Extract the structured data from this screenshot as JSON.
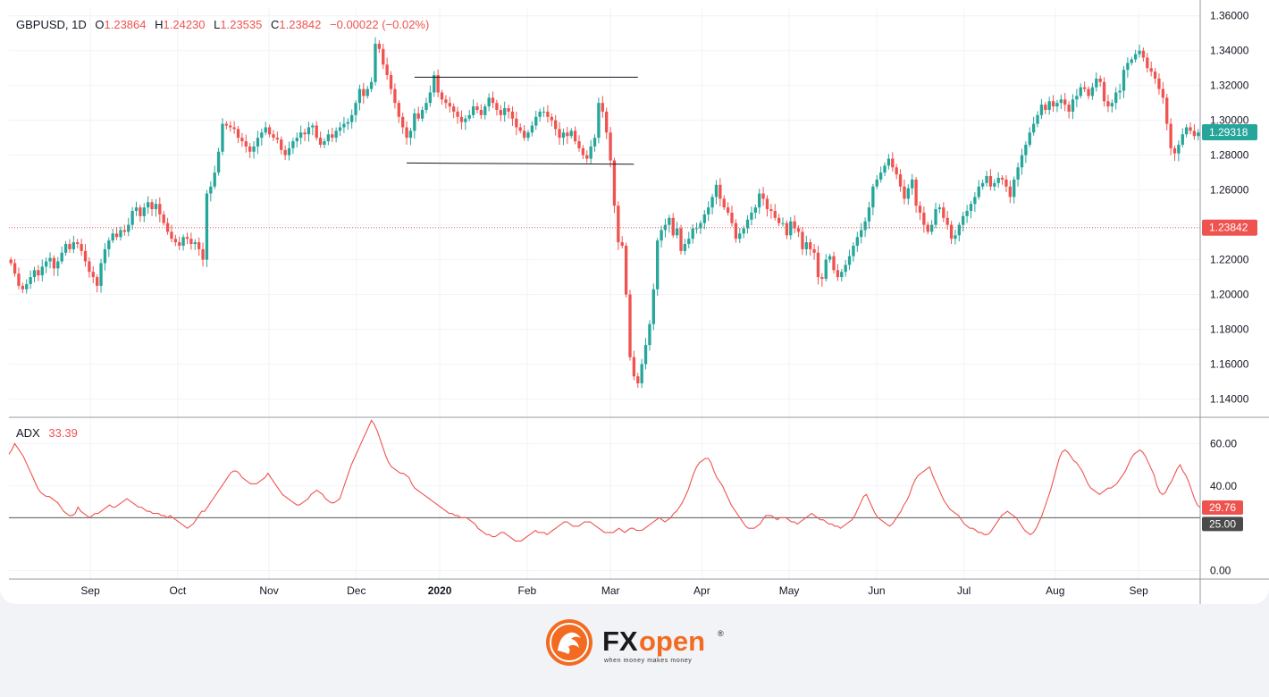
{
  "header": {
    "symbol": "GBPUSD, 1D",
    "open_label": "O",
    "open": "1.23864",
    "high_label": "H",
    "high": "1.24230",
    "low_label": "L",
    "low": "1.23535",
    "close_label": "C",
    "close": "1.23842",
    "change": "−0.00022 (−0.02%)"
  },
  "adx_header": {
    "label": "ADX",
    "value": "33.39"
  },
  "colors": {
    "up": "#26a69a",
    "down": "#ef5350",
    "adx_line": "#ef5350",
    "grid": "#f0f3fa",
    "axis": "#131722",
    "text": "#131722",
    "last_price_tag": "#26a69a",
    "close_tag": "#ef5350",
    "level_tag": "#4a4a4a"
  },
  "price_tags": {
    "current": "1.29318",
    "close": "1.23842"
  },
  "adx_tags": {
    "adx": "29.76",
    "level": "25.00"
  },
  "chart_data": [
    {
      "type": "candlestick",
      "title": "GBPUSD, 1D",
      "ylim": [
        1.13,
        1.365
      ],
      "y_ticks": [
        "1.36000",
        "1.34000",
        "1.32000",
        "1.30000",
        "1.28000",
        "1.26000",
        "1.24000",
        "1.22000",
        "1.20000",
        "1.18000",
        "1.16000",
        "1.14000"
      ],
      "x_ticks": [
        "Sep",
        "Oct",
        "Nov",
        "Dec",
        "2020",
        "Feb",
        "Mar",
        "Apr",
        "May",
        "Jun",
        "Jul",
        "Aug",
        "Sep"
      ],
      "x_tick_positions": [
        20,
        42,
        65,
        87,
        108,
        130,
        151,
        174,
        196,
        218,
        240,
        263,
        284
      ],
      "series": [
        {
          "name": "GBPUSD",
          "close": [
            1.218,
            1.212,
            1.205,
            1.203,
            1.206,
            1.21,
            1.214,
            1.211,
            1.216,
            1.219,
            1.221,
            1.215,
            1.219,
            1.224,
            1.229,
            1.226,
            1.23,
            1.229,
            1.225,
            1.219,
            1.213,
            1.21,
            1.205,
            1.218,
            1.226,
            1.231,
            1.235,
            1.233,
            1.237,
            1.236,
            1.24,
            1.248,
            1.25,
            1.245,
            1.25,
            1.253,
            1.249,
            1.252,
            1.246,
            1.241,
            1.236,
            1.232,
            1.23,
            1.228,
            1.233,
            1.232,
            1.229,
            1.23,
            1.226,
            1.22,
            1.258,
            1.262,
            1.27,
            1.282,
            1.298,
            1.297,
            1.296,
            1.295,
            1.29,
            1.288,
            1.285,
            1.282,
            1.285,
            1.29,
            1.293,
            1.296,
            1.292,
            1.29,
            1.289,
            1.283,
            1.28,
            1.284,
            1.288,
            1.29,
            1.293,
            1.292,
            1.296,
            1.297,
            1.29,
            1.286,
            1.288,
            1.292,
            1.29,
            1.294,
            1.296,
            1.298,
            1.299,
            1.303,
            1.31,
            1.318,
            1.314,
            1.318,
            1.322,
            1.344,
            1.341,
            1.332,
            1.326,
            1.318,
            1.31,
            1.302,
            1.296,
            1.29,
            1.294,
            1.304,
            1.301,
            1.306,
            1.31,
            1.316,
            1.326,
            1.316,
            1.312,
            1.31,
            1.308,
            1.305,
            1.302,
            1.299,
            1.301,
            1.303,
            1.308,
            1.306,
            1.303,
            1.308,
            1.313,
            1.31,
            1.306,
            1.303,
            1.307,
            1.305,
            1.301,
            1.296,
            1.294,
            1.29,
            1.293,
            1.297,
            1.302,
            1.305,
            1.305,
            1.302,
            1.3,
            1.295,
            1.29,
            1.293,
            1.291,
            1.294,
            1.288,
            1.284,
            1.28,
            1.278,
            1.285,
            1.29,
            1.31,
            1.305,
            1.293,
            1.277,
            1.251,
            1.23,
            1.228,
            1.2,
            1.164,
            1.153,
            1.149,
            1.16,
            1.171,
            1.183,
            1.203,
            1.231,
            1.237,
            1.24,
            1.244,
            1.234,
            1.238,
            1.225,
            1.229,
            1.232,
            1.238,
            1.238,
            1.241,
            1.246,
            1.25,
            1.256,
            1.263,
            1.255,
            1.25,
            1.247,
            1.241,
            1.232,
            1.235,
            1.238,
            1.243,
            1.247,
            1.25,
            1.258,
            1.255,
            1.249,
            1.248,
            1.244,
            1.241,
            1.241,
            1.234,
            1.242,
            1.238,
            1.236,
            1.226,
            1.23,
            1.226,
            1.224,
            1.21,
            1.209,
            1.22,
            1.222,
            1.214,
            1.21,
            1.213,
            1.217,
            1.222,
            1.228,
            1.233,
            1.237,
            1.242,
            1.25,
            1.262,
            1.266,
            1.27,
            1.274,
            1.278,
            1.273,
            1.269,
            1.262,
            1.255,
            1.261,
            1.266,
            1.251,
            1.247,
            1.24,
            1.236,
            1.24,
            1.249,
            1.25,
            1.244,
            1.24,
            1.232,
            1.234,
            1.24,
            1.245,
            1.248,
            1.252,
            1.256,
            1.262,
            1.264,
            1.268,
            1.262,
            1.264,
            1.267,
            1.266,
            1.262,
            1.256,
            1.266,
            1.273,
            1.28,
            1.286,
            1.293,
            1.298,
            1.303,
            1.309,
            1.306,
            1.311,
            1.308,
            1.31,
            1.312,
            1.309,
            1.305,
            1.312,
            1.314,
            1.319,
            1.318,
            1.314,
            1.319,
            1.324,
            1.322,
            1.311,
            1.308,
            1.31,
            1.316,
            1.317,
            1.329,
            1.333,
            1.335,
            1.338,
            1.34,
            1.336,
            1.33,
            1.328,
            1.324,
            1.318,
            1.313,
            1.298,
            1.284,
            1.281,
            1.286,
            1.292,
            1.296,
            1.294,
            1.291,
            1.293
          ]
        }
      ]
    },
    {
      "type": "line",
      "title": "ADX",
      "ylim": [
        -4,
        72
      ],
      "y_ticks": [
        "60.00",
        "40.00",
        "0.00"
      ],
      "reference_line": 25,
      "series": [
        {
          "name": "ADX",
          "values": [
            55,
            57,
            60,
            58,
            56,
            54,
            51,
            48,
            45,
            42,
            39,
            37,
            36,
            35,
            35,
            34,
            33,
            32,
            30,
            28,
            27,
            26,
            26,
            27,
            30,
            28,
            27,
            26,
            25,
            26,
            27,
            27,
            28,
            29,
            30,
            31,
            30,
            30,
            31,
            32,
            33,
            34,
            33,
            32,
            31,
            30,
            30,
            29,
            28,
            28,
            27,
            27,
            27,
            26,
            26,
            25,
            26,
            25,
            24,
            23,
            22,
            21,
            20,
            21,
            22,
            24,
            26,
            28,
            28,
            30,
            32,
            34,
            36,
            38,
            40,
            42,
            44,
            46,
            47,
            47,
            46,
            44,
            43,
            42,
            41,
            41,
            41,
            42,
            43,
            44,
            46,
            44,
            42,
            40,
            38,
            36,
            35,
            34,
            33,
            32,
            31,
            31,
            32,
            33,
            34,
            36,
            37,
            38,
            37,
            36,
            34,
            33,
            32,
            32,
            33,
            34,
            38,
            42,
            46,
            50,
            53,
            56,
            59,
            62,
            65,
            68,
            71,
            69,
            66,
            62,
            58,
            54,
            51,
            49,
            48,
            47,
            46,
            46,
            45,
            44,
            41,
            39,
            38,
            37,
            36,
            35,
            34,
            33,
            32,
            31,
            30,
            29,
            28,
            27,
            27,
            26,
            26,
            25,
            25,
            25,
            24,
            23,
            22,
            20,
            19,
            18,
            17,
            17,
            16,
            16,
            17,
            18,
            18,
            17,
            16,
            15,
            14,
            14,
            14,
            15,
            16,
            17,
            18,
            19,
            18,
            18,
            18,
            17,
            18,
            19,
            20,
            21,
            22,
            23,
            23,
            22,
            21,
            21,
            21,
            22,
            23,
            23,
            23,
            22,
            21,
            20,
            19,
            18,
            18,
            18,
            18,
            19,
            20,
            19,
            18,
            19,
            20,
            20,
            19,
            19,
            19,
            20,
            21,
            22,
            23,
            24,
            25,
            24,
            23,
            24,
            25,
            27,
            28,
            30,
            32,
            35,
            38,
            42,
            46,
            49,
            51,
            52,
            53,
            53,
            51,
            47,
            44,
            42,
            40,
            37,
            34,
            31,
            29,
            27,
            25,
            23,
            21,
            20,
            20,
            20,
            21,
            22,
            24,
            26,
            26,
            26,
            25,
            24,
            25,
            25,
            25,
            24,
            23,
            23,
            22,
            23,
            24,
            25,
            26,
            27,
            26,
            25,
            24,
            24,
            23,
            22,
            22,
            21,
            21,
            20,
            21,
            22,
            23,
            24,
            26,
            29,
            32,
            35,
            36,
            33,
            30,
            27,
            25,
            24,
            23,
            22,
            21,
            22,
            24,
            26,
            28,
            31,
            33,
            36,
            40,
            43,
            45,
            46,
            47,
            48,
            49,
            45,
            42,
            39,
            36,
            33,
            31,
            29,
            28,
            27,
            26,
            24,
            22,
            21,
            20,
            20,
            19,
            18,
            18,
            17,
            17,
            18,
            20,
            22,
            24,
            26,
            27,
            28,
            27,
            26,
            25,
            23,
            21,
            19,
            18,
            17,
            18,
            20,
            23,
            26,
            30,
            34,
            38,
            43,
            48,
            53,
            56,
            57,
            56,
            54,
            52,
            51,
            49,
            47,
            44,
            41,
            39,
            38,
            37,
            36,
            37,
            38,
            39,
            39,
            40,
            41,
            43,
            45,
            47,
            50,
            53,
            55,
            56,
            57,
            56,
            54,
            51,
            48,
            45,
            40,
            37,
            36,
            37,
            40,
            42,
            45,
            48,
            50,
            47,
            45,
            42,
            38,
            34,
            31,
            29.76
          ]
        }
      ]
    }
  ],
  "footer": {
    "brand_fx": "FX",
    "brand_open": "open",
    "registered": "®",
    "tagline": "when money makes money"
  }
}
